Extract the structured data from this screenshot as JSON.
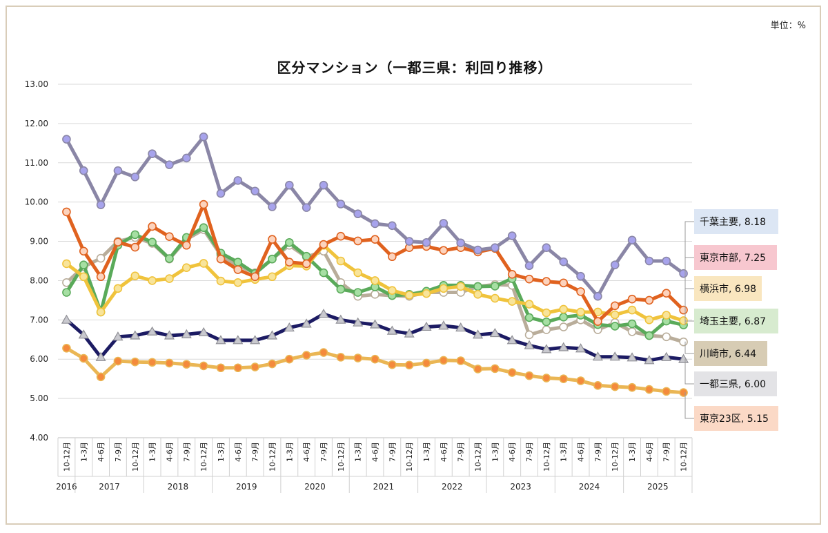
{
  "unit_label": "単位：%",
  "chart_data": {
    "type": "line",
    "title": "区分マンション（一都三県：利回り推移）",
    "xlabel": "",
    "ylabel": "",
    "ylim": [
      4,
      13
    ],
    "yticks": [
      "4.00",
      "5.00",
      "6.00",
      "7.00",
      "8.00",
      "9.00",
      "10.00",
      "11.00",
      "12.00",
      "13.00"
    ],
    "grid": true,
    "categories": [
      "10-12月",
      "1-3月",
      "4-6月",
      "7-9月",
      "10-12月",
      "1-3月",
      "4-6月",
      "7-9月",
      "10-12月",
      "1-3月",
      "4-6月",
      "7-9月",
      "10-12月",
      "1-3月",
      "4-6月",
      "7-9月",
      "10-12月",
      "1-3月",
      "4-6月",
      "7-9月",
      "10-12月",
      "1-3月",
      "4-6月",
      "7-9月",
      "10-12月",
      "1-3月",
      "4-6月",
      "7-9月",
      "10-12月",
      "1-3月",
      "4-6月",
      "7-9月",
      "10-12月",
      "1-3月",
      "4-6月",
      "7-9月",
      "10-12月"
    ],
    "years": [
      {
        "label": "2016",
        "start": 0,
        "end": 0
      },
      {
        "label": "2017",
        "start": 1,
        "end": 4
      },
      {
        "label": "2018",
        "start": 5,
        "end": 8
      },
      {
        "label": "2019",
        "start": 9,
        "end": 12
      },
      {
        "label": "2020",
        "start": 13,
        "end": 16
      },
      {
        "label": "2021",
        "start": 17,
        "end": 20
      },
      {
        "label": "2022",
        "start": 21,
        "end": 24
      },
      {
        "label": "2023",
        "start": 25,
        "end": 28
      },
      {
        "label": "2024",
        "start": 29,
        "end": 32
      },
      {
        "label": "2025",
        "start": 33,
        "end": 36
      }
    ],
    "series": [
      {
        "name": "千葉主要",
        "label": "千葉主要, 8.18",
        "color": "#8a86a6",
        "marker_fill": "#a7a3ec",
        "marker": "circle",
        "callout_bg": "#dce6f4",
        "values": [
          11.6,
          10.8,
          9.93,
          10.8,
          10.64,
          11.23,
          10.95,
          11.12,
          11.66,
          10.22,
          10.55,
          10.28,
          9.88,
          10.43,
          9.86,
          10.43,
          9.95,
          9.7,
          9.45,
          9.4,
          9.0,
          8.97,
          9.46,
          8.96,
          8.78,
          8.84,
          9.14,
          8.38,
          8.84,
          8.48,
          8.11,
          7.6,
          8.4,
          9.03,
          8.5,
          8.5,
          8.18
        ]
      },
      {
        "name": "東京市部",
        "label": "東京市部, 7.25",
        "color": "#e0621f",
        "marker_fill": "#fcd3bd",
        "marker": "circle",
        "callout_bg": "#f7c7cf",
        "values": [
          9.75,
          8.75,
          8.1,
          8.98,
          8.85,
          9.38,
          9.12,
          8.9,
          9.94,
          8.55,
          8.28,
          8.1,
          9.05,
          8.47,
          8.43,
          8.92,
          9.13,
          9.01,
          9.05,
          8.61,
          8.84,
          8.87,
          8.77,
          8.84,
          8.73,
          8.82,
          8.16,
          8.04,
          7.98,
          7.94,
          7.72,
          6.96,
          7.36,
          7.53,
          7.5,
          7.68,
          7.25
        ]
      },
      {
        "name": "横浜市",
        "label": "横浜市, 6.98",
        "color": "#f0c33c",
        "marker_fill": "#f8e49a",
        "marker": "circle",
        "callout_bg": "#f9e6bf",
        "values": [
          8.43,
          8.1,
          7.2,
          7.8,
          8.12,
          8.0,
          8.05,
          8.33,
          8.44,
          7.99,
          7.95,
          8.03,
          8.1,
          8.38,
          8.37,
          8.9,
          8.5,
          8.2,
          8.0,
          7.75,
          7.63,
          7.67,
          7.8,
          7.85,
          7.65,
          7.55,
          7.47,
          7.4,
          7.18,
          7.27,
          7.2,
          7.2,
          7.13,
          7.25,
          7.0,
          7.12,
          6.98
        ]
      },
      {
        "name": "埼玉主要",
        "label": "埼玉主要, 6.87",
        "color": "#5aaa5a",
        "marker_fill": "#a6dfa3",
        "marker": "circle",
        "callout_bg": "#d7ebcf",
        "values": [
          7.7,
          8.4,
          7.2,
          8.9,
          9.17,
          8.98,
          8.56,
          9.1,
          9.35,
          8.7,
          8.47,
          8.18,
          8.55,
          8.97,
          8.62,
          8.2,
          7.78,
          7.7,
          7.84,
          7.62,
          7.65,
          7.73,
          7.88,
          7.88,
          7.85,
          7.86,
          8.05,
          7.06,
          6.95,
          7.07,
          7.12,
          6.88,
          6.84,
          6.9,
          6.6,
          6.97,
          6.87
        ]
      },
      {
        "name": "川崎市",
        "label": "川崎市, 6.44",
        "color": "#b9ad9a",
        "marker_fill": "#ffffff",
        "marker": "circle",
        "callout_bg": "#d7ccb4",
        "values": [
          7.95,
          8.35,
          8.57,
          9.0,
          9.1,
          8.95,
          8.55,
          9.05,
          9.3,
          8.65,
          8.38,
          8.2,
          8.55,
          8.9,
          8.6,
          8.75,
          7.95,
          7.6,
          7.65,
          7.62,
          7.6,
          7.7,
          7.7,
          7.7,
          7.85,
          7.9,
          7.88,
          6.62,
          6.75,
          6.82,
          7.0,
          6.75,
          6.93,
          6.7,
          6.6,
          6.57,
          6.44
        ]
      },
      {
        "name": "一都三県",
        "label": "一都三県, 6.00",
        "color": "#1c1b63",
        "marker_fill": "#c9c9cf",
        "marker": "triangle",
        "callout_bg": "#e3e3e6",
        "values": [
          7.0,
          6.62,
          6.05,
          6.57,
          6.6,
          6.7,
          6.6,
          6.63,
          6.68,
          6.48,
          6.48,
          6.48,
          6.6,
          6.8,
          6.9,
          7.15,
          7.0,
          6.93,
          6.88,
          6.72,
          6.65,
          6.82,
          6.85,
          6.8,
          6.62,
          6.66,
          6.48,
          6.35,
          6.25,
          6.3,
          6.27,
          6.06,
          6.06,
          6.04,
          5.97,
          6.05,
          6.0
        ]
      },
      {
        "name": "東京23区",
        "label": "東京23区, 5.15",
        "color": "#eab654",
        "marker_fill": "#f48a3c",
        "marker": "circle",
        "callout_bg": "#fbd9c6",
        "values": [
          6.28,
          6.02,
          5.55,
          5.95,
          5.93,
          5.92,
          5.9,
          5.87,
          5.83,
          5.78,
          5.78,
          5.8,
          5.88,
          6.0,
          6.1,
          6.17,
          6.05,
          6.03,
          6.0,
          5.86,
          5.85,
          5.9,
          5.97,
          5.96,
          5.75,
          5.76,
          5.66,
          5.58,
          5.52,
          5.5,
          5.45,
          5.33,
          5.3,
          5.28,
          5.23,
          5.18,
          5.15
        ]
      }
    ]
  }
}
